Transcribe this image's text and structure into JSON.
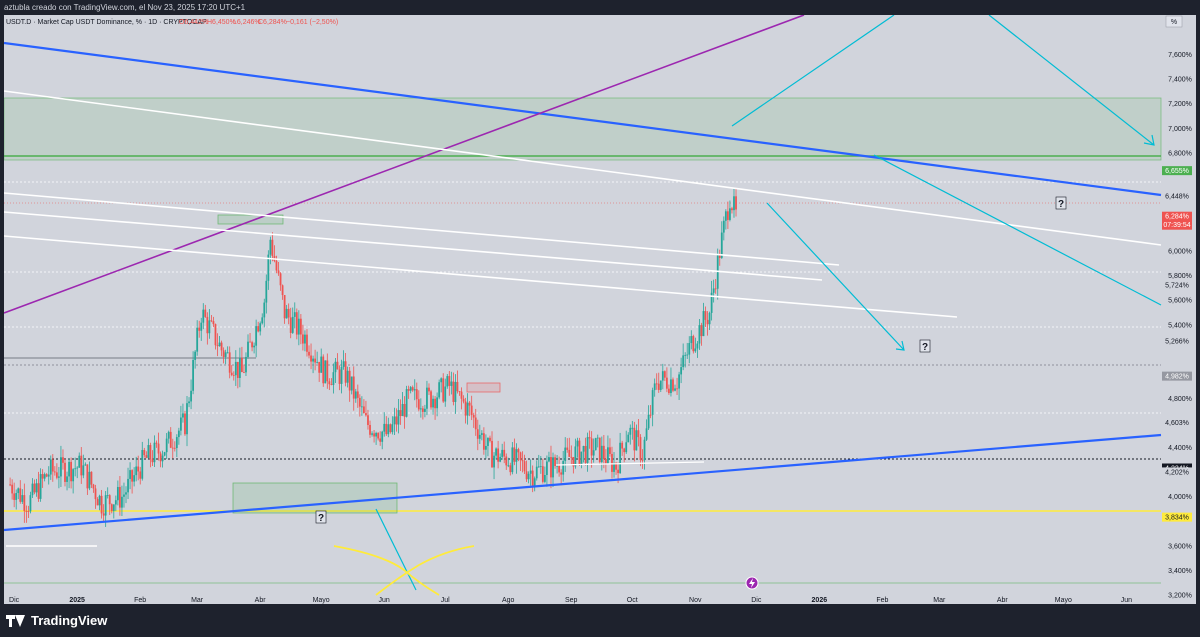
{
  "header": {
    "caption": "aztubla creado con TradingView.com, el Nov 23, 2025 17:20 UTC+1"
  },
  "legend": {
    "symbol": "USDT.D · Market Cap USDT Dominance, % · 1D · CRYPTOCAP",
    "open": "O6,442%",
    "high": "H6,450%",
    "low": "L6,246%",
    "close": "C6,284%",
    "change": "−0,161 (−2,50%)"
  },
  "axis": {
    "unit": "%",
    "countdown": "07:39:54"
  },
  "footer": {
    "brand": "TradingView"
  },
  "colors": {
    "background": "#d1d4dc",
    "up": "#26a69a",
    "down": "#ef5350",
    "trendline_blue": "#2962ff",
    "trendline_purple": "#9c27b0",
    "trendline_white": "#ffffff",
    "arrow_cyan": "#00bcd4",
    "zone_green": "#4caf50",
    "support_yellow": "#ffeb3b"
  },
  "chart_data": {
    "type": "candlestick",
    "title": "USDT.D · Market Cap USDT Dominance, % · 1D · CRYPTOCAP",
    "ylim": [
      3.2,
      7.8
    ],
    "y_ticks": [
      3.2,
      3.4,
      3.6,
      4.0,
      4.4,
      4.8,
      5.4,
      5.6,
      5.8,
      6.0,
      6.8,
      7.0,
      7.2,
      7.4,
      7.6
    ],
    "x_ticks": [
      "Dic",
      "2025",
      "Feb",
      "Mar",
      "Abr",
      "Mayo",
      "Jun",
      "Jul",
      "Ago",
      "Sep",
      "Oct",
      "Nov",
      "Dic",
      "2026",
      "Feb",
      "Mar",
      "Abr",
      "Mayo",
      "Jun"
    ],
    "marked_levels": [
      {
        "value": 6.655,
        "label": "6,655%",
        "style": "green"
      },
      {
        "value": 6.448,
        "label": "6,448%",
        "style": "plain"
      },
      {
        "value": 6.284,
        "label": "6,284%",
        "style": "price"
      },
      {
        "value": 5.724,
        "label": "5,724%",
        "style": "plain"
      },
      {
        "value": 5.282,
        "label": "5,282%",
        "style": "plain"
      },
      {
        "value": 5.266,
        "label": "5,266%",
        "style": "plain"
      },
      {
        "value": 4.982,
        "label": "4,982%",
        "style": "grey"
      },
      {
        "value": 4.603,
        "label": "4,603%",
        "style": "plain"
      },
      {
        "value": 4.234,
        "label": "4,234%",
        "style": "dark"
      },
      {
        "value": 4.202,
        "label": "4,202%",
        "style": "plain"
      },
      {
        "value": 3.834,
        "label": "3,834%",
        "style": "yellow"
      }
    ],
    "ohlc_last": {
      "open": 6.442,
      "high": 6.45,
      "low": 6.246,
      "close": 6.284,
      "change": -0.161,
      "change_pct": -2.5
    },
    "price_path": [
      {
        "date": "2024-12-01",
        "value": 4.1
      },
      {
        "date": "2024-12-10",
        "value": 3.95
      },
      {
        "date": "2024-12-20",
        "value": 4.2
      },
      {
        "date": "2025-01-05",
        "value": 4.25
      },
      {
        "date": "2025-01-15",
        "value": 3.95
      },
      {
        "date": "2025-01-25",
        "value": 4.0
      },
      {
        "date": "2025-02-05",
        "value": 4.3
      },
      {
        "date": "2025-02-15",
        "value": 4.4
      },
      {
        "date": "2025-02-25",
        "value": 4.6
      },
      {
        "date": "2025-03-05",
        "value": 5.5
      },
      {
        "date": "2025-03-15",
        "value": 5.2
      },
      {
        "date": "2025-03-25",
        "value": 5.0
      },
      {
        "date": "2025-04-05",
        "value": 5.6
      },
      {
        "date": "2025-04-08",
        "value": 6.1
      },
      {
        "date": "2025-04-15",
        "value": 5.5
      },
      {
        "date": "2025-04-25",
        "value": 5.3
      },
      {
        "date": "2025-05-05",
        "value": 5.0
      },
      {
        "date": "2025-05-15",
        "value": 5.0
      },
      {
        "date": "2025-05-25",
        "value": 4.6
      },
      {
        "date": "2025-06-05",
        "value": 4.5
      },
      {
        "date": "2025-06-15",
        "value": 4.8
      },
      {
        "date": "2025-06-25",
        "value": 4.8
      },
      {
        "date": "2025-07-05",
        "value": 4.9
      },
      {
        "date": "2025-07-15",
        "value": 4.7
      },
      {
        "date": "2025-07-25",
        "value": 4.35
      },
      {
        "date": "2025-08-05",
        "value": 4.3
      },
      {
        "date": "2025-08-15",
        "value": 4.2
      },
      {
        "date": "2025-08-25",
        "value": 4.25
      },
      {
        "date": "2025-09-05",
        "value": 4.35
      },
      {
        "date": "2025-09-15",
        "value": 4.4
      },
      {
        "date": "2025-09-25",
        "value": 4.25
      },
      {
        "date": "2025-10-01",
        "value": 4.55
      },
      {
        "date": "2025-10-08",
        "value": 4.35
      },
      {
        "date": "2025-10-15",
        "value": 4.95
      },
      {
        "date": "2025-10-25",
        "value": 4.95
      },
      {
        "date": "2025-11-01",
        "value": 5.25
      },
      {
        "date": "2025-11-10",
        "value": 5.5
      },
      {
        "date": "2025-11-15",
        "value": 6.0
      },
      {
        "date": "2025-11-20",
        "value": 6.45
      },
      {
        "date": "2025-11-23",
        "value": 6.284
      }
    ],
    "annotations": [
      "?",
      "?",
      "?",
      "?"
    ]
  }
}
